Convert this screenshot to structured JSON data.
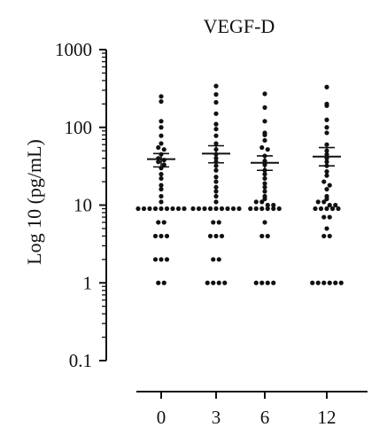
{
  "chart_data": {
    "type": "scatter",
    "title": "VEGF-D",
    "xlabel": "",
    "ylabel": "Log 10 (pg/mL)",
    "y_scale": "log",
    "ylim": [
      0.1,
      1000
    ],
    "yticks": [
      0.1,
      1,
      10,
      100,
      1000
    ],
    "ytick_labels": [
      "0.1",
      "1",
      "10",
      "100",
      "1000"
    ],
    "categories": [
      "0",
      "3",
      "6",
      "12"
    ],
    "grid": false,
    "legend": "none",
    "series": [
      {
        "category": "0",
        "mean": 39,
        "sem_low": 31,
        "sem_high": 46,
        "points": [
          250,
          215,
          120,
          100,
          78,
          62,
          55,
          52,
          45,
          40,
          38,
          36,
          33,
          30,
          25,
          22,
          18,
          16,
          13,
          11,
          9,
          9,
          9,
          9,
          9,
          9,
          9,
          9,
          9,
          6,
          6,
          4,
          4,
          4,
          2,
          2,
          2,
          1,
          1
        ]
      },
      {
        "category": "3",
        "mean": 46,
        "sem_low": 35,
        "sem_high": 58,
        "points": [
          340,
          265,
          210,
          150,
          110,
          95,
          78,
          62,
          52,
          45,
          40,
          36,
          32,
          28,
          23,
          20,
          17,
          15,
          13,
          11,
          9,
          9,
          9,
          9,
          9,
          9,
          9,
          9,
          9,
          6,
          6,
          4,
          4,
          4,
          2,
          2,
          1,
          1,
          1,
          1
        ]
      },
      {
        "category": "6",
        "mean": 35,
        "sem_low": 28,
        "sem_high": 43,
        "points": [
          270,
          180,
          120,
          85,
          80,
          68,
          55,
          52,
          43,
          37,
          33,
          28,
          25,
          22,
          19,
          17,
          15,
          13,
          12,
          11,
          11,
          10,
          10,
          9,
          9,
          9,
          9,
          9,
          9,
          6,
          4,
          4,
          1,
          1,
          1,
          1
        ]
      },
      {
        "category": "12",
        "mean": 42,
        "sem_low": 32,
        "sem_high": 55,
        "points": [
          330,
          200,
          190,
          125,
          100,
          85,
          60,
          50,
          45,
          40,
          36,
          32,
          27,
          24,
          20,
          18,
          16,
          13,
          12,
          11,
          11,
          10,
          10,
          9,
          9,
          9,
          9,
          9,
          7,
          7,
          5,
          4,
          4,
          1,
          1,
          1,
          1,
          1,
          1
        ]
      }
    ]
  }
}
